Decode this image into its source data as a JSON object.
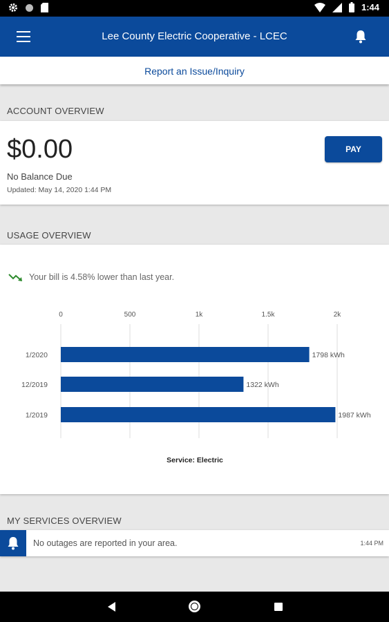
{
  "status_bar": {
    "time": "1:44"
  },
  "app_bar": {
    "title": "Lee County Electric Cooperative - LCEC"
  },
  "report": {
    "label": "Report an Issue/Inquiry"
  },
  "account": {
    "header": "ACCOUNT OVERVIEW",
    "amount": "$0.00",
    "balance_text": "No Balance Due",
    "updated": "Updated:  May 14, 2020 1:44 PM",
    "pay_label": "PAY"
  },
  "usage": {
    "header": "USAGE OVERVIEW",
    "message": "Your bill is 4.58% lower than last year."
  },
  "chart_data": {
    "type": "bar",
    "orientation": "horizontal",
    "categories": [
      "1/2020",
      "12/2019",
      "1/2019"
    ],
    "values": [
      1798,
      1322,
      1987
    ],
    "value_labels": [
      "1798 kWh",
      "1322 kWh",
      "1987 kWh"
    ],
    "ticks": [
      0,
      500,
      1000,
      1500,
      2000
    ],
    "tick_labels": [
      "0",
      "500",
      "1k",
      "1.5k",
      "2k"
    ],
    "xlim": [
      0,
      2000
    ],
    "xlabel": "Service: Electric",
    "grid": true,
    "bar_color": "#0b4a9b"
  },
  "services": {
    "header": "MY SERVICES OVERVIEW",
    "message": "No outages are reported in your area.",
    "time": "1:44 PM"
  },
  "colors": {
    "primary": "#0b4a9b",
    "trend_down": "#2e8b2e"
  }
}
